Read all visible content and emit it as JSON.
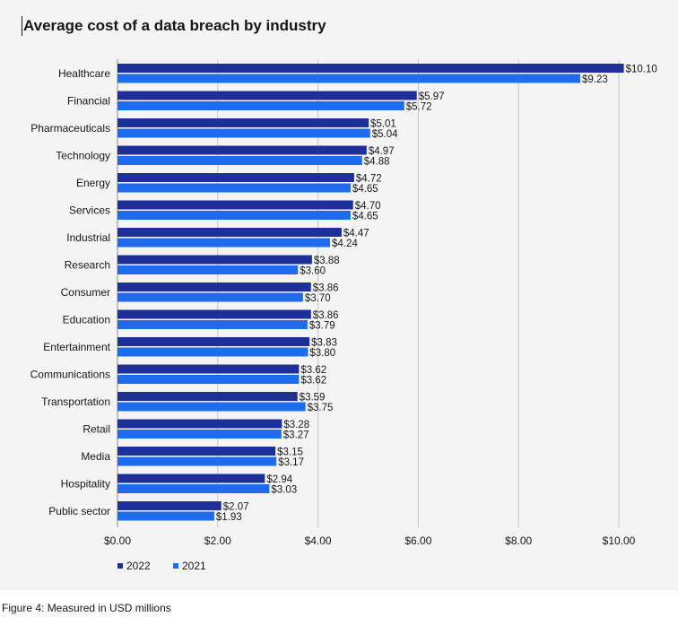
{
  "title": "Average cost of a data breach by industry",
  "caption": "Figure 4: Measured in USD millions",
  "colors": {
    "s2022": "#1f2f99",
    "s2021": "#1f6bf0",
    "grid": "#c6c6c6",
    "text": "#161616"
  },
  "chart_data": {
    "type": "bar",
    "orientation": "horizontal",
    "title": "Average cost of a data breach by industry",
    "xlabel": "",
    "ylabel": "",
    "xlim": [
      0,
      10.5
    ],
    "xticks": [
      0,
      2,
      4,
      6,
      8,
      10
    ],
    "xtick_labels": [
      "$0.00",
      "$2.00",
      "$4.00",
      "$6.00",
      "$8.00",
      "$10.00"
    ],
    "grid": true,
    "legend": "bottom-left",
    "categories": [
      "Healthcare",
      "Financial",
      "Pharmaceuticals",
      "Technology",
      "Energy",
      "Services",
      "Industrial",
      "Research",
      "Consumer",
      "Education",
      "Entertainment",
      "Communications",
      "Transportation",
      "Retail",
      "Media",
      "Hospitality",
      "Public sector"
    ],
    "series": [
      {
        "name": "2022",
        "values": [
          10.1,
          5.97,
          5.01,
          4.97,
          4.72,
          4.7,
          4.47,
          3.88,
          3.86,
          3.86,
          3.83,
          3.62,
          3.59,
          3.28,
          3.15,
          2.94,
          2.07
        ],
        "labels": [
          "$10.10",
          "$5.97",
          "$5.01",
          "$4.97",
          "$4.72",
          "$4.70",
          "$4.47",
          "$3.88",
          "$3.86",
          "$3.86",
          "$3.83",
          "$3.62",
          "$3.59",
          "$3.28",
          "$3.15",
          "$2.94",
          "$2.07"
        ]
      },
      {
        "name": "2021",
        "values": [
          9.23,
          5.72,
          5.04,
          4.88,
          4.65,
          4.65,
          4.24,
          3.6,
          3.7,
          3.79,
          3.8,
          3.62,
          3.75,
          3.27,
          3.17,
          3.03,
          1.93
        ],
        "labels": [
          "$9.23",
          "$5.72",
          "$5.04",
          "$4.88",
          "$4.65",
          "$4.65",
          "$4.24",
          "$3.60",
          "$3.70",
          "$3.79",
          "$3.80",
          "$3.62",
          "$3.75",
          "$3.27",
          "$3.17",
          "$3.03",
          "$1.93"
        ]
      }
    ]
  }
}
